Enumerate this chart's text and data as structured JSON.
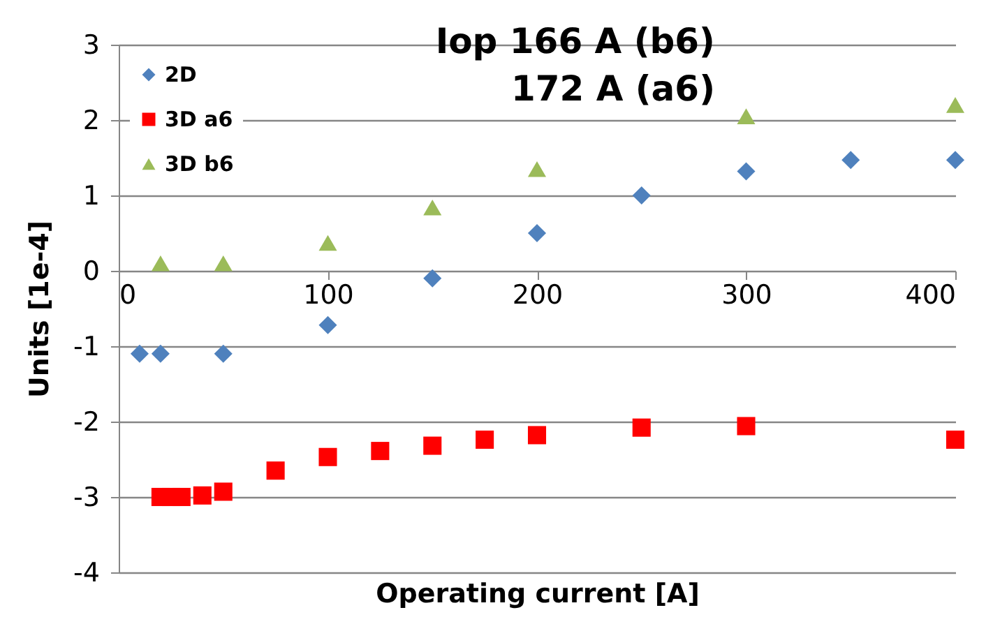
{
  "chart_data": {
    "type": "scatter",
    "title": [
      "Iop 166 A (b6)",
      "172 A (a6)"
    ],
    "xlabel": "Operating current [A]",
    "ylabel": "Units [1e-4]",
    "xlim": [
      0,
      400
    ],
    "xticks": [
      0,
      100,
      200,
      300,
      400
    ],
    "ylim": [
      -4,
      3
    ],
    "yticks": [
      -4,
      -3,
      -2,
      -1,
      0,
      1,
      2,
      3
    ],
    "grid": "y",
    "legend": "top left",
    "series": [
      {
        "name": "2D",
        "color": "#4f81bd",
        "marker": "diamond",
        "x": [
          10,
          20,
          50,
          100,
          150,
          200,
          250,
          300,
          350,
          400
        ],
        "values": [
          -1.1,
          -1.1,
          -1.1,
          -0.72,
          -0.1,
          0.5,
          1.0,
          1.32,
          1.47,
          1.47
        ]
      },
      {
        "name": "3D a6",
        "color": "#ff0000",
        "marker": "square",
        "x": [
          20,
          25,
          30,
          40,
          50,
          75,
          100,
          125,
          150,
          175,
          200,
          250,
          300,
          400
        ],
        "values": [
          -3.0,
          -3.0,
          -3.0,
          -2.98,
          -2.93,
          -2.65,
          -2.47,
          -2.39,
          -2.32,
          -2.24,
          -2.18,
          -2.08,
          -2.06,
          -2.24
        ]
      },
      {
        "name": "3D b6",
        "color": "#9bbb59",
        "marker": "triangle",
        "x": [
          20,
          50,
          100,
          150,
          200,
          300,
          400
        ],
        "values": [
          0.1,
          0.1,
          0.37,
          0.84,
          1.35,
          2.05,
          2.2
        ]
      }
    ]
  }
}
